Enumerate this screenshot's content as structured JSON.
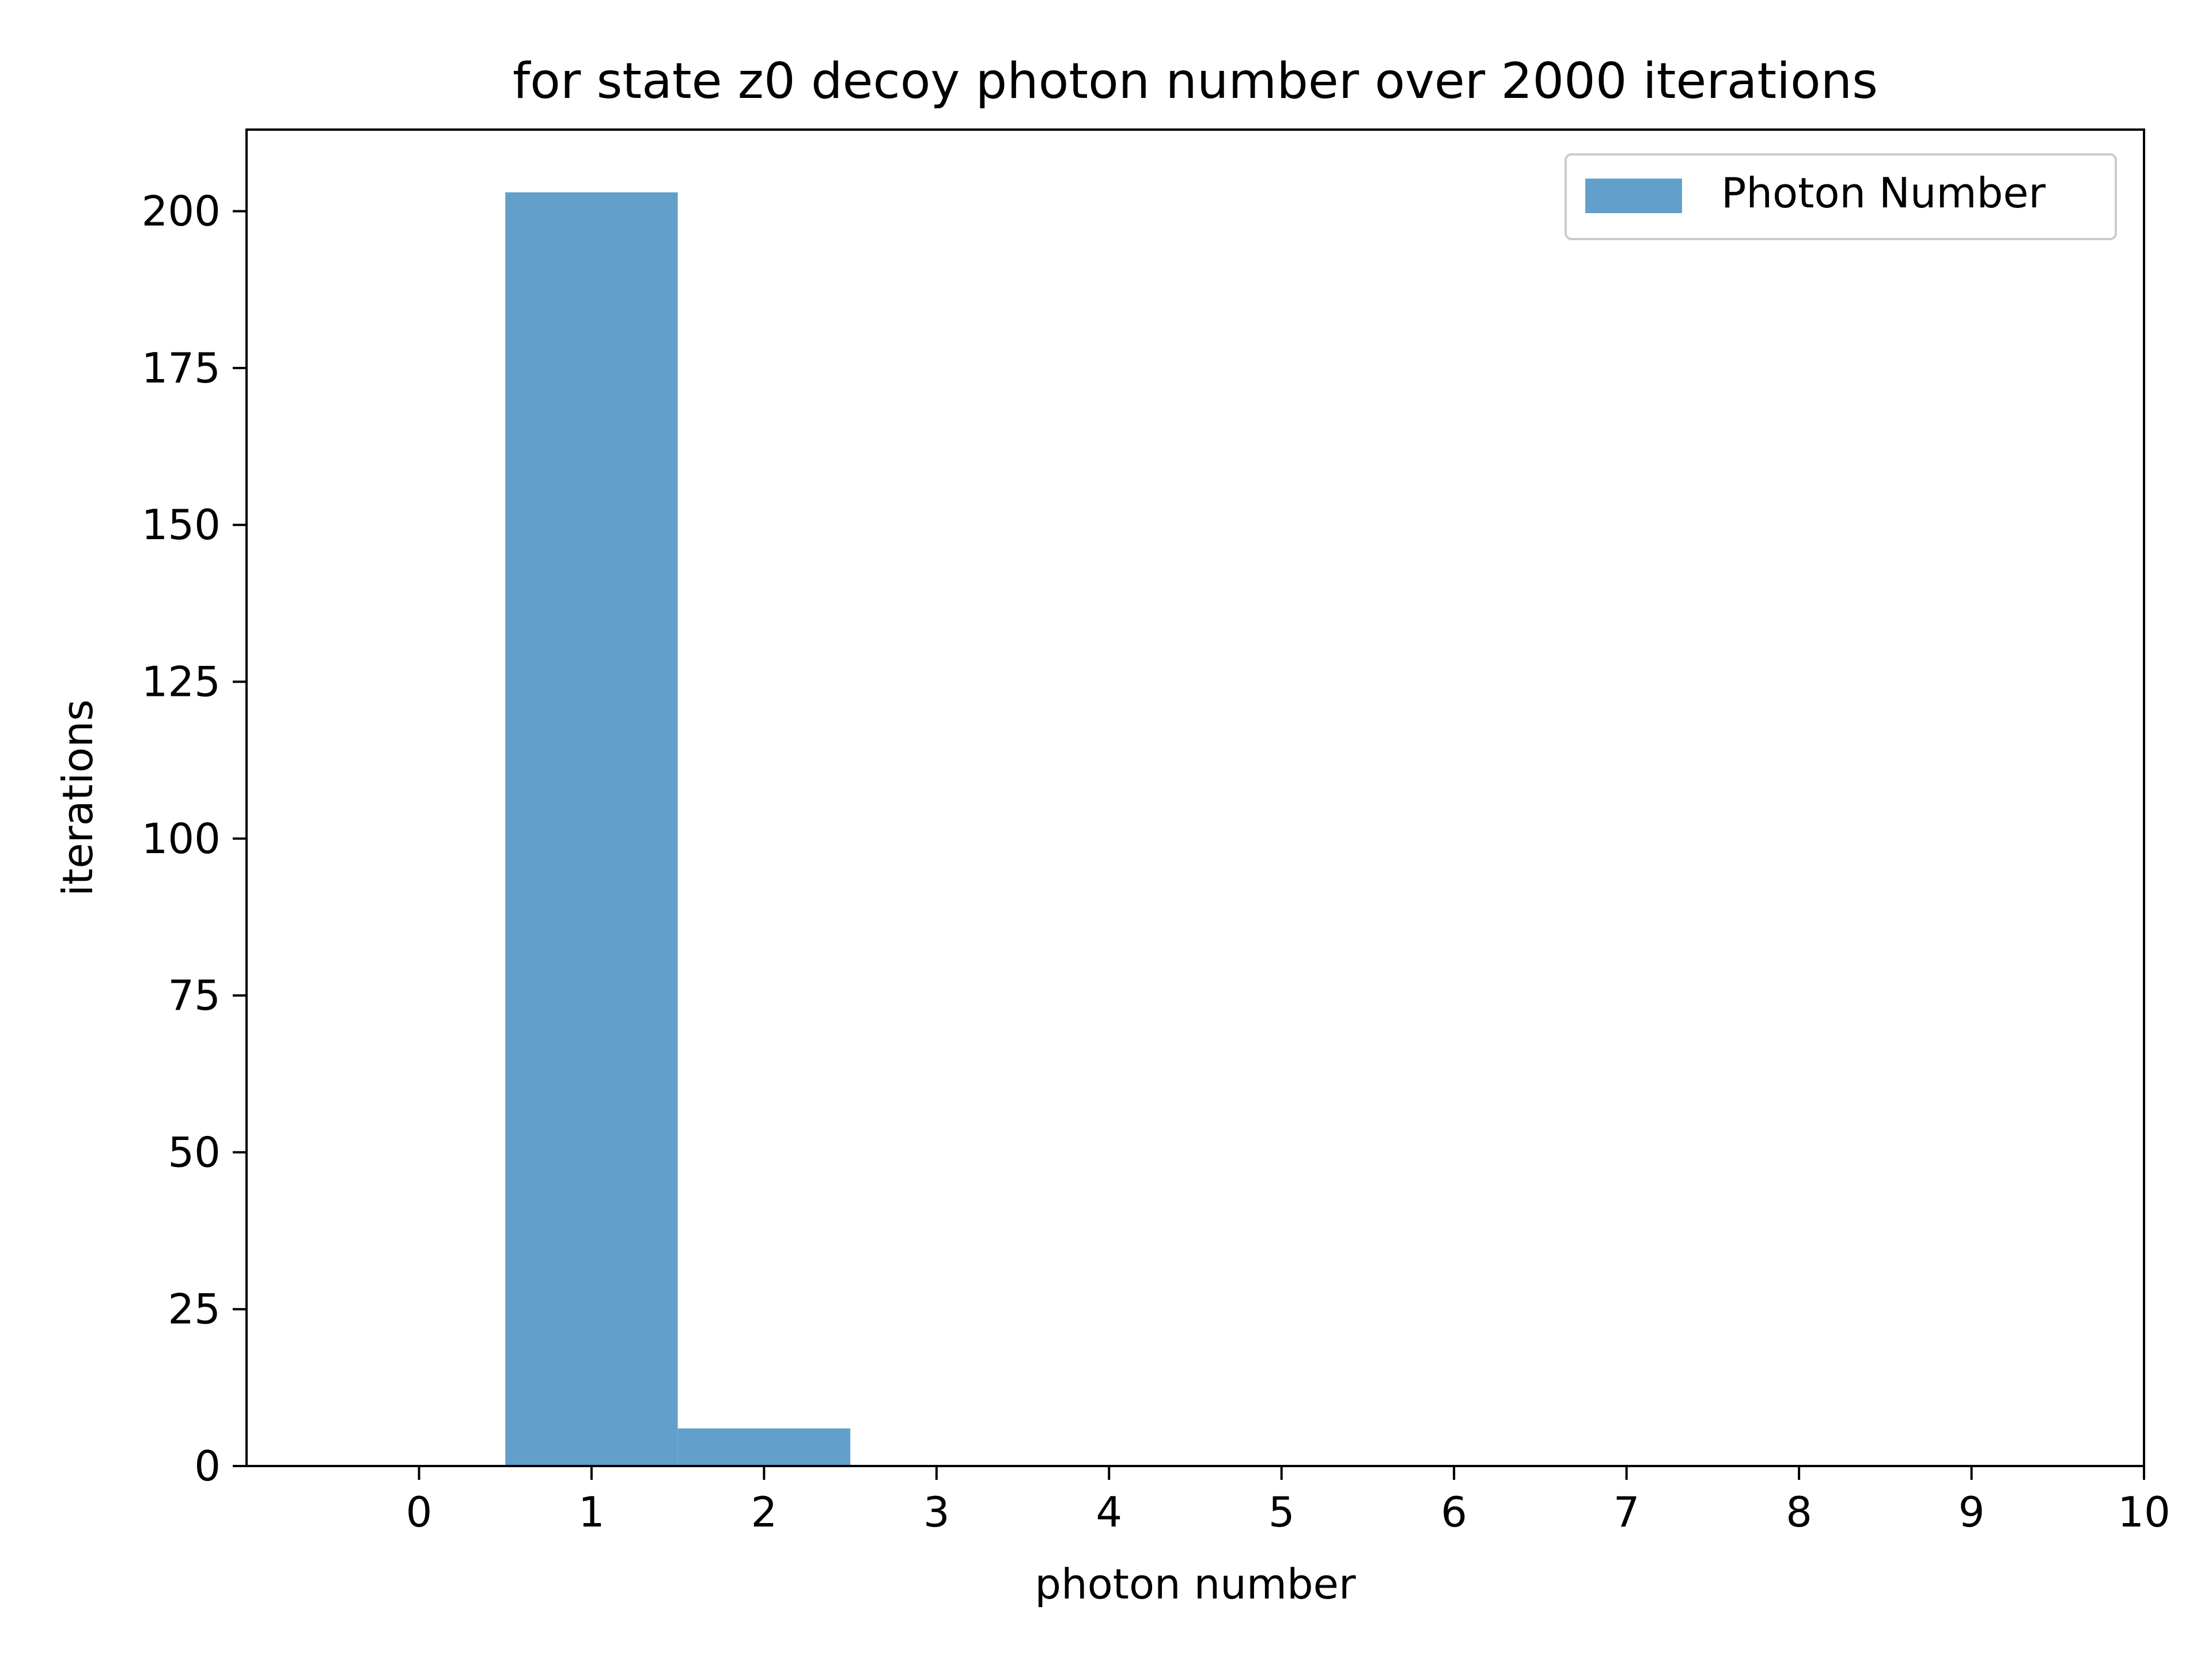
{
  "chart_data": {
    "type": "bar",
    "title": "for state z0 decoy photon number over 2000 iterations",
    "xlabel": "photon number",
    "ylabel": "iterations",
    "xlim": [
      -1,
      10
    ],
    "ylim": [
      0,
      213
    ],
    "xticks": [
      "0",
      "1",
      "2",
      "3",
      "4",
      "5",
      "6",
      "7",
      "8",
      "9",
      "10"
    ],
    "yticks": [
      "0",
      "25",
      "50",
      "75",
      "100",
      "125",
      "150",
      "175",
      "200"
    ],
    "bar_width": 1,
    "series": [
      {
        "name": "Photon Number",
        "color": "#62a0cb",
        "x": [
          1,
          2
        ],
        "values": [
          203,
          6
        ]
      }
    ],
    "grid": false,
    "legend_position": "top-right"
  }
}
